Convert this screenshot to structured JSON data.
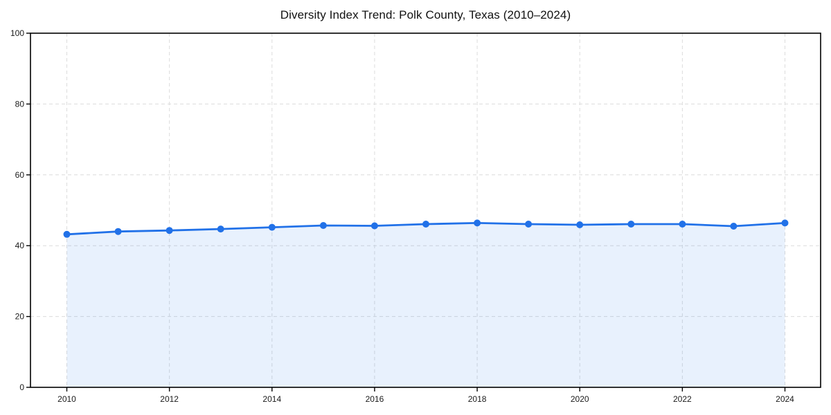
{
  "page": {
    "background": "#ffffff"
  },
  "chart_data": {
    "type": "area",
    "title": "Diversity Index Trend: Polk County, Texas (2010–2024)",
    "x": [
      2010,
      2011,
      2012,
      2013,
      2014,
      2015,
      2016,
      2017,
      2018,
      2019,
      2020,
      2021,
      2022,
      2023,
      2024
    ],
    "series": [
      {
        "name": "Diversity Index",
        "values": [
          43.2,
          44.0,
          44.3,
          44.7,
          45.2,
          45.7,
          45.6,
          46.1,
          46.4,
          46.1,
          45.9,
          46.1,
          46.1,
          45.5,
          46.4
        ]
      }
    ],
    "xlabel": "",
    "ylabel": "",
    "xlim": [
      2010,
      2024
    ],
    "ylim": [
      0,
      100
    ],
    "yticks": [
      0,
      20,
      40,
      60,
      80,
      100
    ],
    "xticks": [
      2010,
      2012,
      2014,
      2016,
      2018,
      2020,
      2022,
      2024
    ],
    "grid": true,
    "grid_style": "dashed",
    "legend": "none",
    "marker": "circle",
    "colors": {
      "line": "#2171e8",
      "marker": "#2171e8",
      "fill": "#2171e8",
      "fill_opacity": 0.1,
      "grid": "#dcdcdc",
      "spine": "#000000",
      "tick_text": "#1a1a1a",
      "title_text": "#111111",
      "background": "#ffffff"
    }
  }
}
